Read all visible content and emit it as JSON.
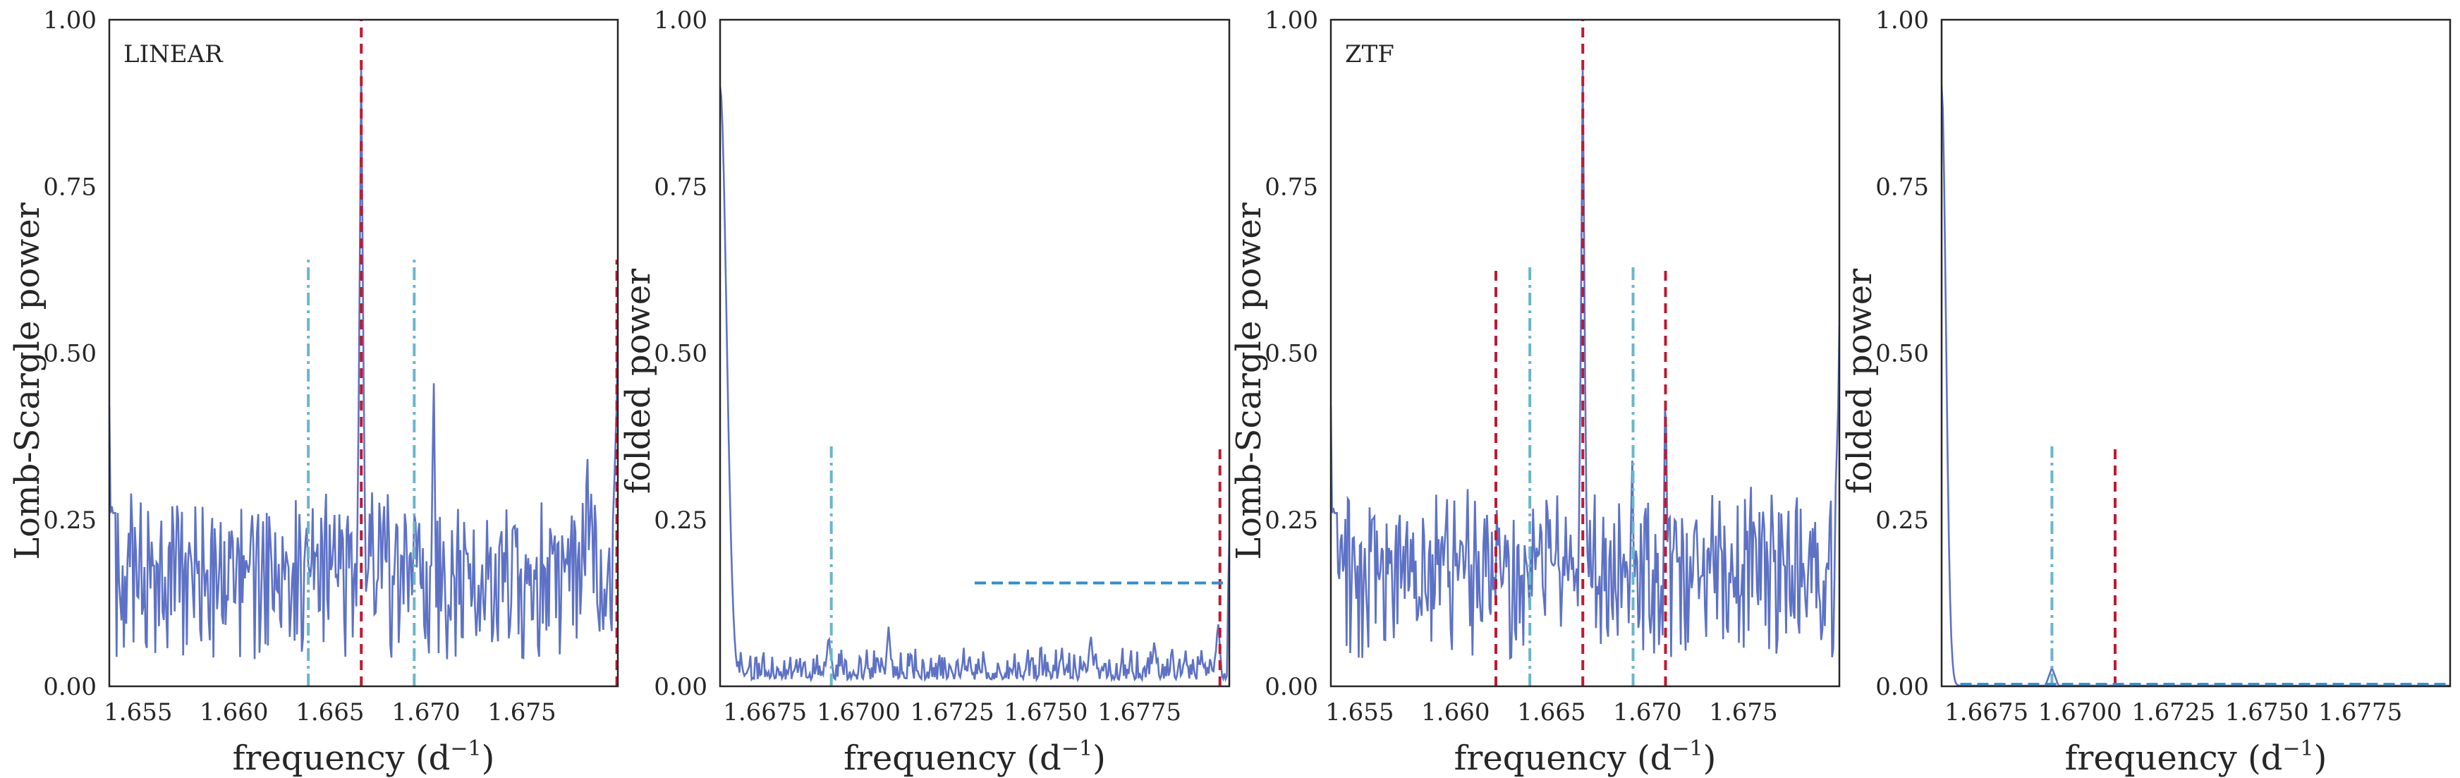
{
  "chart_data": [
    {
      "type": "line",
      "panel_label": "LINEAR",
      "xlabel": "frequency (d",
      "xlabel_sup": "−1",
      "xlabel_end": ")",
      "ylabel": "Lomb-Scargle power",
      "xlim": [
        1.6535,
        1.68
      ],
      "ylim": [
        0,
        1
      ],
      "xticks": [
        1.655,
        1.66,
        1.665,
        1.67,
        1.675
      ],
      "xtick_labels": [
        "1.655",
        "1.660",
        "1.665",
        "1.670",
        "1.675"
      ],
      "yticks": [
        0,
        0.25,
        0.5,
        0.75,
        1.0
      ],
      "ytick_labels": [
        "0.00",
        "0.25",
        "0.50",
        "0.75",
        "1.00"
      ],
      "series_color": "#5d72c6",
      "peak": {
        "x": 1.66663,
        "y": 0.96
      },
      "curve_seed": 7,
      "curve_edges": [
        [
          1.6535,
          0.42
        ],
        [
          1.67995,
          0.55
        ]
      ],
      "bumps": [
        [
          1.6704,
          0.48
        ],
        [
          1.6784,
          0.39
        ],
        [
          1.6638,
          0.26
        ]
      ],
      "vlines": [
        {
          "x": 1.66663,
          "ymax": 1.0,
          "style": "dashed",
          "color": "#c0192f"
        },
        {
          "x": 1.66387,
          "ymax": 0.64,
          "style": "dashdot",
          "color": "#6ab6cc"
        },
        {
          "x": 1.66939,
          "ymax": 0.64,
          "style": "dashdot",
          "color": "#6ab6cc"
        },
        {
          "x": 1.67995,
          "ymax": 0.64,
          "style": "dashed",
          "color": "#c0192f"
        }
      ],
      "hlines": []
    },
    {
      "type": "line",
      "panel_label": "",
      "xlabel": "frequency (d",
      "xlabel_sup": "−1",
      "xlabel_end": ")",
      "ylabel": "folded power",
      "xlim": [
        1.6663,
        1.6799
      ],
      "ylim": [
        0,
        1
      ],
      "xticks": [
        1.6675,
        1.67,
        1.6725,
        1.675,
        1.6775
      ],
      "xtick_labels": [
        "1.6675",
        "1.6700",
        "1.6725",
        "1.6750",
        "1.6775"
      ],
      "yticks": [
        0,
        0.25,
        0.5,
        0.75,
        1.0
      ],
      "ytick_labels": [
        "0.00",
        "0.25",
        "0.50",
        "0.75",
        "1.00"
      ],
      "series_color": "#5d72c6",
      "start_value": 0.9,
      "curve_seed": 11,
      "curve_edges": [
        [
          1.6799,
          0.22
        ]
      ],
      "bumps": [
        [
          1.6692,
          0.08
        ],
        [
          1.6708,
          0.09
        ],
        [
          1.6762,
          0.08
        ],
        [
          1.6779,
          0.07
        ],
        [
          1.6796,
          0.1
        ]
      ],
      "vlines": [
        {
          "x": 1.66927,
          "ymax": 0.36,
          "style": "dashdot",
          "color": "#6ab6cc"
        },
        {
          "x": 1.67965,
          "ymax": 0.36,
          "style": "dashed",
          "color": "#c0192f"
        }
      ],
      "hlines": [
        {
          "y": 0.155,
          "xmin": 1.6731,
          "xmax": 1.6799,
          "style": "dashed",
          "color": "#2f8ed6"
        }
      ]
    },
    {
      "type": "line",
      "panel_label": "ZTF",
      "xlabel": "frequency (d",
      "xlabel_sup": "−1",
      "xlabel_end": ")",
      "ylabel": "Lomb-Scargle power",
      "xlim": [
        1.6535,
        1.68
      ],
      "ylim": [
        0,
        1
      ],
      "xticks": [
        1.655,
        1.66,
        1.665,
        1.67,
        1.675
      ],
      "xtick_labels": [
        "1.655",
        "1.660",
        "1.665",
        "1.670",
        "1.675"
      ],
      "yticks": [
        0,
        0.25,
        0.5,
        0.75,
        1.0
      ],
      "ytick_labels": [
        "0.00",
        "0.25",
        "0.50",
        "0.75",
        "1.00"
      ],
      "series_color": "#5d72c6",
      "peak": {
        "x": 1.66663,
        "y": 0.96
      },
      "curve_seed": 19,
      "curve_edges": [
        [
          1.6535,
          0.42
        ],
        [
          1.67995,
          0.54
        ]
      ],
      "bumps": [
        [
          1.67094,
          0.49
        ],
        [
          1.6622,
          0.22
        ],
        [
          1.6692,
          0.36
        ]
      ],
      "vlines": [
        {
          "x": 1.66663,
          "ymax": 1.0,
          "style": "dashed",
          "color": "#c0192f"
        },
        {
          "x": 1.66387,
          "ymax": 0.63,
          "style": "dashdot",
          "color": "#6ab6cc"
        },
        {
          "x": 1.66925,
          "ymax": 0.63,
          "style": "dashdot",
          "color": "#6ab6cc"
        },
        {
          "x": 1.6621,
          "ymax": 0.63,
          "style": "dashed",
          "color": "#c0192f"
        },
        {
          "x": 1.67094,
          "ymax": 0.63,
          "style": "dashed",
          "color": "#c0192f"
        }
      ],
      "hlines": []
    },
    {
      "type": "line",
      "panel_label": "",
      "xlabel": "frequency (d",
      "xlabel_sup": "−1",
      "xlabel_end": ")",
      "ylabel": "folded power",
      "xlim": [
        1.6663,
        1.6799
      ],
      "ylim": [
        0,
        1
      ],
      "xticks": [
        1.6675,
        1.67,
        1.6725,
        1.675,
        1.6775
      ],
      "xtick_labels": [
        "1.6675",
        "1.6700",
        "1.6725",
        "1.6750",
        "1.6775"
      ],
      "yticks": [
        0,
        0.25,
        0.5,
        0.75,
        1.0
      ],
      "ytick_labels": [
        "0.00",
        "0.25",
        "0.50",
        "0.75",
        "1.00"
      ],
      "series_color": "#5d72c6",
      "start_value": 0.9,
      "flat": true,
      "bumps": [
        [
          1.66925,
          0.028
        ]
      ],
      "vlines": [
        {
          "x": 1.66925,
          "ymax": 0.36,
          "style": "dashdot",
          "color": "#6ab6cc"
        },
        {
          "x": 1.67094,
          "ymax": 0.36,
          "style": "dashed",
          "color": "#c0192f"
        }
      ],
      "hlines": [
        {
          "y": 0.003,
          "xmin": 1.6668,
          "xmax": 1.6799,
          "style": "dashed",
          "color": "#2f8ed6"
        }
      ]
    }
  ]
}
